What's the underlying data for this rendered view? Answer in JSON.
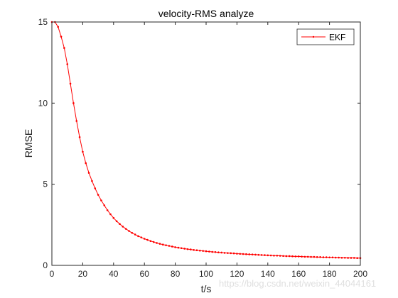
{
  "chart_data": {
    "type": "line",
    "title": "velocity-RMS analyze",
    "xlabel": "t/s",
    "ylabel": "RMSE",
    "xlim": [
      0,
      200
    ],
    "ylim": [
      0,
      15
    ],
    "x_ticks": [
      0,
      20,
      40,
      60,
      80,
      100,
      120,
      140,
      160,
      180,
      200
    ],
    "y_ticks": [
      0,
      5,
      10,
      15
    ],
    "x_tick_labels": [
      "0",
      "20",
      "40",
      "60",
      "80",
      "100",
      "120",
      "140",
      "160",
      "180",
      "200"
    ],
    "y_tick_labels": [
      "0",
      "5",
      "10",
      "15"
    ],
    "grid": false,
    "legend_position": "top-right",
    "series": [
      {
        "name": "EKF",
        "color": "#ff0000",
        "marker": "dot",
        "x": [
          0,
          2,
          4,
          6,
          8,
          10,
          12,
          14,
          16,
          18,
          20,
          22,
          24,
          26,
          28,
          30,
          32,
          34,
          36,
          38,
          40,
          42,
          44,
          46,
          48,
          50,
          52,
          54,
          56,
          58,
          60,
          62,
          64,
          66,
          68,
          70,
          72,
          74,
          76,
          78,
          80,
          82,
          84,
          86,
          88,
          90,
          92,
          94,
          96,
          98,
          100,
          102,
          104,
          106,
          108,
          110,
          112,
          114,
          116,
          118,
          120,
          122,
          124,
          126,
          128,
          130,
          132,
          134,
          136,
          138,
          140,
          142,
          144,
          146,
          148,
          150,
          152,
          154,
          156,
          158,
          160,
          162,
          164,
          166,
          168,
          170,
          172,
          174,
          176,
          178,
          180,
          182,
          184,
          186,
          188,
          190,
          192,
          194,
          196,
          198,
          200
        ],
        "values": [
          15.0,
          15.0,
          14.7,
          14.1,
          13.4,
          12.4,
          11.2,
          10.0,
          8.9,
          7.9,
          7.0,
          6.3,
          5.7,
          5.2,
          4.75,
          4.35,
          4.0,
          3.7,
          3.4,
          3.15,
          2.92,
          2.72,
          2.55,
          2.39,
          2.25,
          2.12,
          2.0,
          1.9,
          1.8,
          1.72,
          1.64,
          1.57,
          1.5,
          1.44,
          1.38,
          1.33,
          1.28,
          1.24,
          1.2,
          1.16,
          1.12,
          1.09,
          1.06,
          1.03,
          1.0,
          0.98,
          0.95,
          0.93,
          0.91,
          0.89,
          0.87,
          0.85,
          0.83,
          0.82,
          0.8,
          0.79,
          0.77,
          0.76,
          0.75,
          0.74,
          0.72,
          0.71,
          0.7,
          0.69,
          0.68,
          0.67,
          0.66,
          0.65,
          0.64,
          0.63,
          0.62,
          0.61,
          0.6,
          0.6,
          0.59,
          0.58,
          0.57,
          0.57,
          0.56,
          0.55,
          0.55,
          0.54,
          0.53,
          0.53,
          0.52,
          0.52,
          0.51,
          0.51,
          0.5,
          0.5,
          0.49,
          0.49,
          0.48,
          0.48,
          0.47,
          0.47,
          0.46,
          0.46,
          0.46,
          0.45,
          0.45
        ]
      }
    ]
  },
  "watermark": {
    "text": "https://blog.csdn.net/weixin_44044161"
  }
}
